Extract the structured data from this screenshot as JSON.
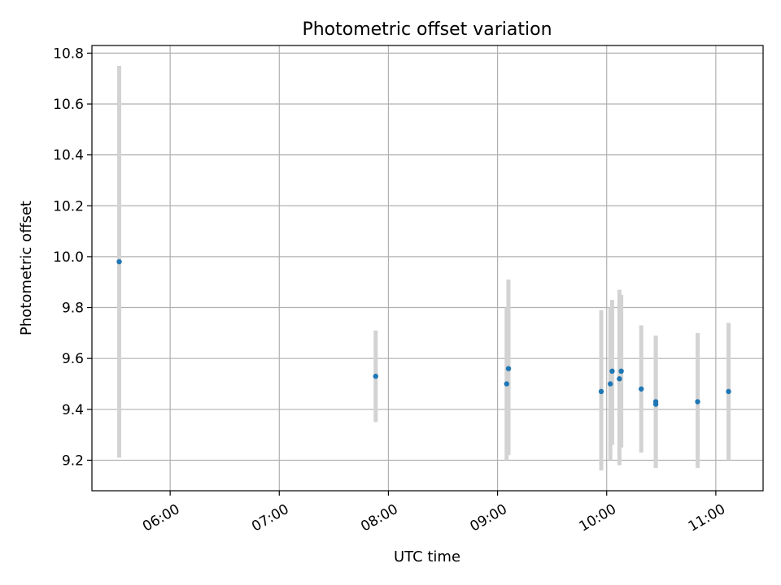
{
  "chart_data": {
    "type": "scatter",
    "title": "Photometric offset variation",
    "xlabel": "UTC time",
    "ylabel": "Photometric offset",
    "x_tick_labels": [
      "06:00",
      "07:00",
      "08:00",
      "09:00",
      "10:00",
      "11:00"
    ],
    "y_tick_labels": [
      "9.2",
      "9.4",
      "9.6",
      "9.8",
      "10.0",
      "10.2",
      "10.4",
      "10.6",
      "10.8"
    ],
    "x_ticks": [
      "06:00",
      "07:00",
      "08:00",
      "09:00",
      "10:00",
      "11:00"
    ],
    "y_ticks": [
      9.2,
      9.4,
      9.6,
      9.8,
      10.0,
      10.2,
      10.4,
      10.6,
      10.8
    ],
    "xlim": [
      "05:17",
      "11:26"
    ],
    "ylim": [
      9.08,
      10.83
    ],
    "grid": true,
    "colors": {
      "points": "#1f77b4",
      "error_bars": "#d3d3d3",
      "grid": "#b0b0b0"
    },
    "points": [
      {
        "x": "05:32",
        "y": 9.98,
        "ylow": 9.21,
        "yhigh": 10.75
      },
      {
        "x": "07:53",
        "y": 9.53,
        "ylow": 9.35,
        "yhigh": 9.71
      },
      {
        "x": "09:05",
        "y": 9.5,
        "ylow": 9.2,
        "yhigh": 9.8
      },
      {
        "x": "09:06",
        "y": 9.56,
        "ylow": 9.22,
        "yhigh": 9.91
      },
      {
        "x": "09:57",
        "y": 9.47,
        "ylow": 9.16,
        "yhigh": 9.79
      },
      {
        "x": "10:02",
        "y": 9.5,
        "ylow": 9.2,
        "yhigh": 9.8
      },
      {
        "x": "10:03",
        "y": 9.55,
        "ylow": 9.26,
        "yhigh": 9.83
      },
      {
        "x": "10:07",
        "y": 9.52,
        "ylow": 9.18,
        "yhigh": 9.87
      },
      {
        "x": "10:08",
        "y": 9.55,
        "ylow": 9.25,
        "yhigh": 9.85
      },
      {
        "x": "10:19",
        "y": 9.48,
        "ylow": 9.23,
        "yhigh": 9.73
      },
      {
        "x": "10:27",
        "y": 9.43,
        "ylow": 9.17,
        "yhigh": 9.69
      },
      {
        "x": "10:27",
        "y": 9.42,
        "ylow": 9.17,
        "yhigh": 9.68
      },
      {
        "x": "10:50",
        "y": 9.43,
        "ylow": 9.17,
        "yhigh": 9.7
      },
      {
        "x": "11:07",
        "y": 9.47,
        "ylow": 9.2,
        "yhigh": 9.74
      }
    ]
  }
}
